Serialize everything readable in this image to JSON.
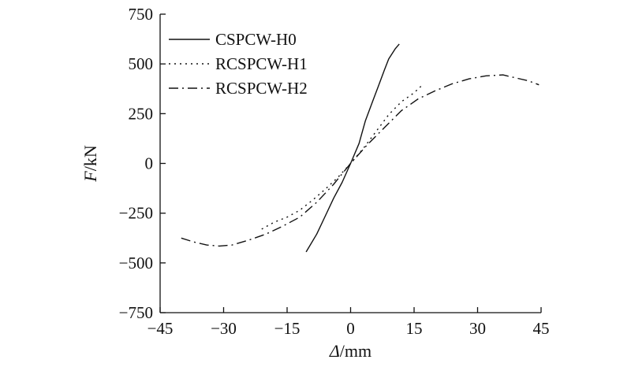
{
  "chart_data": {
    "type": "line",
    "title": "",
    "xlabel": {
      "symbol": "Δ",
      "unit": "/mm"
    },
    "ylabel": {
      "symbol": "F",
      "unit": "/kN"
    },
    "xlim": [
      -45,
      45
    ],
    "ylim": [
      -750,
      750
    ],
    "xticks": [
      -45,
      -30,
      -15,
      0,
      15,
      30,
      45
    ],
    "yticks": [
      -750,
      -500,
      -250,
      0,
      250,
      500,
      750
    ],
    "xtick_labels": [
      "−45",
      "−30",
      "−15",
      "0",
      "15",
      "30",
      "45"
    ],
    "ytick_labels": [
      "−750",
      "−500",
      "−250",
      "0",
      "250",
      "500",
      "750"
    ],
    "grid": false,
    "legend_position": "top-left",
    "series": [
      {
        "name": "CSPCW-H0",
        "style": "solid",
        "points": [
          [
            -10.5,
            -445
          ],
          [
            -8,
            -355
          ],
          [
            -6,
            -265
          ],
          [
            -4,
            -175
          ],
          [
            -2,
            -95
          ],
          [
            0,
            0
          ],
          [
            2,
            100
          ],
          [
            3.5,
            215
          ],
          [
            5,
            300
          ],
          [
            6.5,
            385
          ],
          [
            8,
            470
          ],
          [
            9,
            525
          ],
          [
            10.5,
            575
          ],
          [
            11.5,
            600
          ]
        ]
      },
      {
        "name": "RCSPCW-H1",
        "style": "dotted",
        "points": [
          [
            -21,
            -330
          ],
          [
            -18,
            -295
          ],
          [
            -15,
            -270
          ],
          [
            -12,
            -235
          ],
          [
            -9,
            -185
          ],
          [
            -6,
            -130
          ],
          [
            -3,
            -70
          ],
          [
            0,
            0
          ],
          [
            3,
            75
          ],
          [
            6,
            160
          ],
          [
            9,
            245
          ],
          [
            12,
            310
          ],
          [
            15,
            355
          ],
          [
            17,
            395
          ]
        ]
      },
      {
        "name": "RCSPCW-H2",
        "style": "dashdot",
        "points": [
          [
            -40,
            -375
          ],
          [
            -37,
            -395
          ],
          [
            -34,
            -410
          ],
          [
            -31,
            -415
          ],
          [
            -28,
            -410
          ],
          [
            -24,
            -385
          ],
          [
            -20,
            -355
          ],
          [
            -16,
            -315
          ],
          [
            -12,
            -270
          ],
          [
            -8,
            -195
          ],
          [
            -4,
            -105
          ],
          [
            0,
            0
          ],
          [
            4,
            95
          ],
          [
            8,
            180
          ],
          [
            12,
            265
          ],
          [
            16,
            325
          ],
          [
            20,
            365
          ],
          [
            24,
            400
          ],
          [
            28,
            425
          ],
          [
            32,
            440
          ],
          [
            36,
            445
          ],
          [
            39,
            430
          ],
          [
            42,
            415
          ],
          [
            44.5,
            395
          ]
        ]
      }
    ]
  }
}
